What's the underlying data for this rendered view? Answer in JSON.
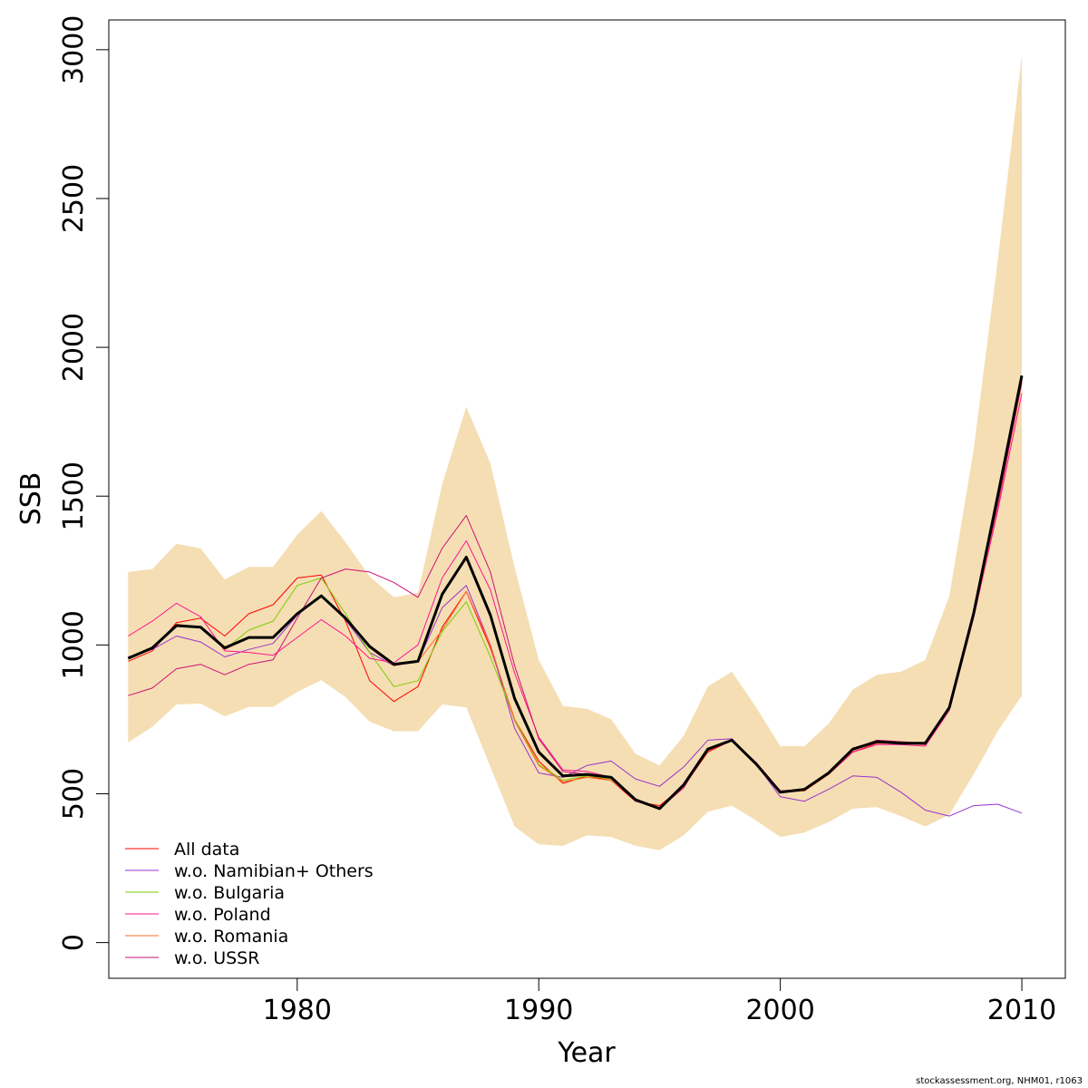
{
  "chart_data": {
    "type": "line",
    "xlabel": "Year",
    "ylabel": "SSB",
    "xlim": [
      1972.2,
      2011.8
    ],
    "ylim": [
      -120,
      3100
    ],
    "x_ticks": [
      1980,
      1990,
      2000,
      2010
    ],
    "x_tick_labels": [
      "1980",
      "1990",
      "2000",
      "2010"
    ],
    "y_ticks": [
      0,
      500,
      1000,
      1500,
      2000,
      2500,
      3000
    ],
    "y_tick_labels": [
      "0",
      "500",
      "1000",
      "1500",
      "2000",
      "2500",
      "3000"
    ],
    "legend_position": "bottom-left",
    "band": {
      "color": "#f5deb3",
      "x": [
        1973,
        1974,
        1975,
        1976,
        1977,
        1978,
        1979,
        1980,
        1981,
        1982,
        1983,
        1984,
        1985,
        1986,
        1987,
        1988,
        1989,
        1990,
        1991,
        1992,
        1993,
        1994,
        1995,
        1996,
        1997,
        1998,
        1999,
        2000,
        2001,
        2002,
        2003,
        2004,
        2005,
        2006,
        2007,
        2008,
        2009,
        2010
      ],
      "upper": [
        1245,
        1255,
        1340,
        1325,
        1220,
        1262,
        1262,
        1370,
        1450,
        1345,
        1230,
        1160,
        1175,
        1540,
        1800,
        1610,
        1260,
        950,
        795,
        785,
        750,
        635,
        595,
        695,
        860,
        910,
        790,
        660,
        660,
        735,
        850,
        900,
        910,
        950,
        1165,
        1655,
        2290,
        2980
      ],
      "lower": [
        672,
        725,
        800,
        803,
        760,
        792,
        792,
        842,
        882,
        825,
        742,
        710,
        710,
        800,
        790,
        590,
        390,
        330,
        325,
        360,
        355,
        325,
        310,
        360,
        440,
        460,
        410,
        355,
        370,
        405,
        450,
        455,
        425,
        390,
        430,
        565,
        710,
        830
      ]
    },
    "series": [
      {
        "name": "All data",
        "color": "#ff0000",
        "values": [
          945,
          980,
          1075,
          1090,
          1030,
          1105,
          1135,
          1225,
          1235,
          1080,
          880,
          810,
          860,
          1060,
          1180,
          990,
          750,
          610,
          535,
          560,
          545,
          475,
          460,
          525,
          640,
          680,
          600,
          505,
          510,
          565,
          640,
          670,
          670,
          665,
          785,
          1100,
          1465,
          1880
        ]
      },
      {
        "name": "w.o. Namibian+ Others",
        "color": "#9932cc",
        "values": [
          960,
          985,
          1030,
          1010,
          960,
          985,
          1005,
          1100,
          1165,
          1085,
          975,
          930,
          945,
          1125,
          1200,
          1000,
          720,
          570,
          555,
          595,
          610,
          550,
          525,
          590,
          680,
          685,
          600,
          490,
          475,
          515,
          560,
          555,
          505,
          445,
          425,
          460,
          465,
          435
        ]
      },
      {
        "name": "w.o. Bulgaria",
        "color": "#7ccd00",
        "values": [
          955,
          990,
          1065,
          1060,
          985,
          1050,
          1080,
          1200,
          1225,
          1105,
          975,
          860,
          880,
          1045,
          1145,
          960,
          750,
          600,
          545,
          560,
          550,
          480,
          455,
          525,
          645,
          680,
          600,
          505,
          510,
          570,
          645,
          675,
          670,
          670,
          790,
          1105,
          1470,
          1890
        ]
      },
      {
        "name": "w.o. Poland",
        "color": "#ff1493",
        "values": [
          1030,
          1080,
          1140,
          1095,
          980,
          975,
          965,
          1025,
          1085,
          1030,
          955,
          940,
          1000,
          1225,
          1350,
          1185,
          905,
          690,
          580,
          575,
          555,
          480,
          455,
          525,
          645,
          680,
          605,
          510,
          510,
          565,
          640,
          665,
          665,
          660,
          780,
          1090,
          1450,
          1845
        ]
      },
      {
        "name": "w.o. Romania",
        "color": "#ff6a2a",
        "values": [
          955,
          990,
          1070,
          1060,
          985,
          1025,
          1025,
          1105,
          1165,
          1090,
          990,
          930,
          945,
          1050,
          1180,
          1000,
          745,
          595,
          540,
          555,
          545,
          480,
          455,
          525,
          645,
          680,
          600,
          505,
          510,
          565,
          645,
          675,
          670,
          670,
          785,
          1100,
          1465,
          1880
        ]
      },
      {
        "name": "w.o. USSR",
        "color": "#cd1076",
        "values": [
          830,
          855,
          920,
          935,
          900,
          935,
          950,
          1090,
          1225,
          1255,
          1245,
          1210,
          1160,
          1325,
          1435,
          1245,
          930,
          685,
          575,
          565,
          555,
          475,
          450,
          520,
          650,
          680,
          605,
          510,
          515,
          570,
          650,
          680,
          675,
          670,
          790,
          1105,
          1470,
          1885
        ]
      },
      {
        "name": "",
        "color": "#000000",
        "width": 3,
        "values": [
          955,
          990,
          1065,
          1060,
          990,
          1025,
          1025,
          1105,
          1165,
          1090,
          995,
          935,
          945,
          1170,
          1295,
          1100,
          820,
          640,
          560,
          565,
          555,
          480,
          450,
          530,
          650,
          680,
          600,
          505,
          515,
          570,
          650,
          675,
          670,
          670,
          790,
          1105,
          1500,
          1905
        ]
      }
    ],
    "legend": [
      "All data",
      "w.o. Namibian+ Others",
      "w.o. Bulgaria",
      "w.o. Poland",
      "w.o. Romania",
      "w.o. USSR"
    ]
  },
  "footer": "stockassessment.org, NHM01, r1063"
}
